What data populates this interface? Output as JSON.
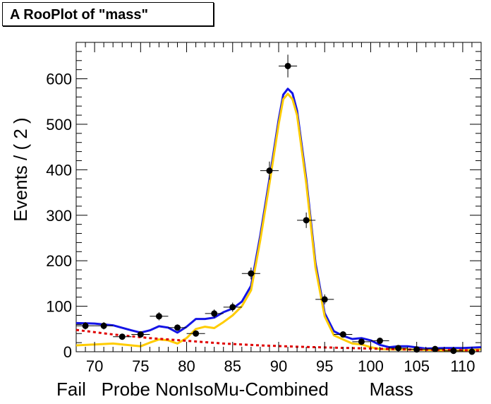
{
  "chart_data": {
    "type": "scatter",
    "title": "A RooPlot of \"mass\"",
    "xlabel": "Fail   Probe NonIsoMu-Combined        Mass",
    "ylabel": "Events / ( 2 )",
    "xlim": [
      68,
      112
    ],
    "ylim": [
      0,
      680
    ],
    "x_ticks": [
      70,
      75,
      80,
      85,
      90,
      95,
      100,
      105,
      110
    ],
    "y_ticks": [
      0,
      100,
      200,
      300,
      400,
      500,
      600
    ],
    "grid": false,
    "series": [
      {
        "kind": "points_with_errors",
        "color": "#000000",
        "x": [
          69,
          71,
          73,
          75,
          77,
          79,
          81,
          83,
          85,
          87,
          89,
          91,
          93,
          95,
          97,
          99,
          101,
          103,
          105,
          107,
          109,
          111
        ],
        "y": [
          57,
          57,
          33,
          38,
          78,
          53,
          40,
          84,
          98,
          172,
          398,
          628,
          289,
          115,
          38,
          22,
          24,
          8,
          5,
          6,
          2,
          0
        ],
        "yerr": [
          8,
          8,
          6,
          6,
          9,
          7,
          6,
          9,
          10,
          13,
          20,
          25,
          17,
          11,
          6,
          5,
          5,
          3,
          2,
          2,
          1,
          1
        ],
        "xerr": 1
      },
      {
        "kind": "line",
        "color": "#1414e6",
        "x": [
          68,
          70,
          72,
          74,
          75,
          76,
          77,
          78,
          79,
          80,
          81,
          82,
          83,
          84,
          85,
          86,
          87,
          88,
          89,
          90,
          90.5,
          91,
          91.5,
          92,
          93,
          94,
          95,
          96,
          97,
          98,
          99,
          100,
          101,
          102,
          103,
          104,
          106,
          108,
          110,
          112
        ],
        "y": [
          63,
          62,
          58,
          47,
          42,
          47,
          56,
          53,
          42,
          55,
          72,
          72,
          75,
          87,
          95,
          110,
          145,
          255,
          380,
          510,
          565,
          578,
          568,
          530,
          380,
          195,
          85,
          45,
          35,
          28,
          30,
          25,
          15,
          10,
          12,
          12,
          7,
          8,
          8,
          10
        ]
      },
      {
        "kind": "line",
        "color": "#ffcc00",
        "x": [
          68,
          70,
          72,
          74,
          75,
          76,
          77,
          78,
          79,
          80,
          81,
          82,
          83,
          84,
          85,
          86,
          87,
          88,
          89,
          90,
          90.5,
          91,
          91.5,
          92,
          93,
          94,
          95,
          96,
          97,
          98,
          99,
          100,
          101,
          102,
          104,
          106,
          108,
          110,
          112
        ],
        "y": [
          14,
          16,
          18,
          14,
          12,
          20,
          27,
          25,
          18,
          30,
          50,
          55,
          52,
          65,
          80,
          100,
          135,
          245,
          370,
          500,
          555,
          567,
          555,
          520,
          370,
          185,
          78,
          36,
          27,
          18,
          16,
          10,
          6,
          5,
          5,
          4,
          3,
          3,
          5
        ]
      },
      {
        "kind": "dashed_line",
        "color": "#e00000",
        "x": [
          68,
          72,
          76,
          80,
          84,
          88,
          92,
          96,
          100,
          104,
          108,
          112
        ],
        "y": [
          48,
          38,
          30,
          24,
          18,
          14,
          11,
          9,
          7,
          5,
          4,
          3
        ]
      }
    ]
  }
}
